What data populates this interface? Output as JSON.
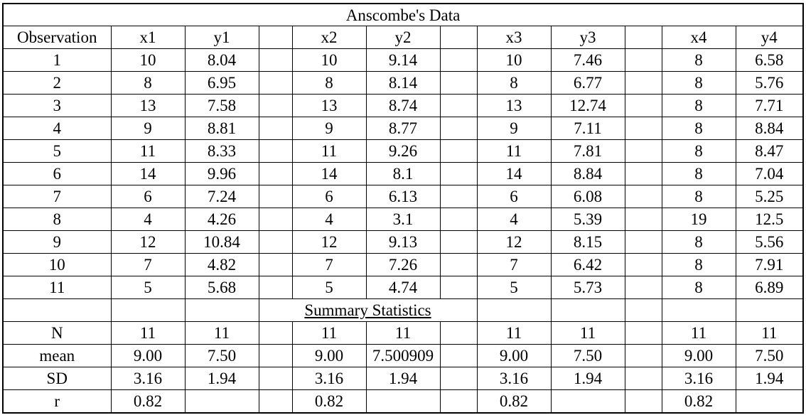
{
  "title": "Anscombe's Data",
  "headers": [
    "Observation",
    "x1",
    "y1",
    "",
    "x2",
    "y2",
    "",
    "x3",
    "y3",
    "",
    "x4",
    "y4"
  ],
  "observations": [
    [
      "1",
      "10",
      "8.04",
      "",
      "10",
      "9.14",
      "",
      "10",
      "7.46",
      "",
      "8",
      "6.58"
    ],
    [
      "2",
      "8",
      "6.95",
      "",
      "8",
      "8.14",
      "",
      "8",
      "6.77",
      "",
      "8",
      "5.76"
    ],
    [
      "3",
      "13",
      "7.58",
      "",
      "13",
      "8.74",
      "",
      "13",
      "12.74",
      "",
      "8",
      "7.71"
    ],
    [
      "4",
      "9",
      "8.81",
      "",
      "9",
      "8.77",
      "",
      "9",
      "7.11",
      "",
      "8",
      "8.84"
    ],
    [
      "5",
      "11",
      "8.33",
      "",
      "11",
      "9.26",
      "",
      "11",
      "7.81",
      "",
      "8",
      "8.47"
    ],
    [
      "6",
      "14",
      "9.96",
      "",
      "14",
      "8.1",
      "",
      "14",
      "8.84",
      "",
      "8",
      "7.04"
    ],
    [
      "7",
      "6",
      "7.24",
      "",
      "6",
      "6.13",
      "",
      "6",
      "6.08",
      "",
      "8",
      "5.25"
    ],
    [
      "8",
      "4",
      "4.26",
      "",
      "4",
      "3.1",
      "",
      "4",
      "5.39",
      "",
      "19",
      "12.5"
    ],
    [
      "9",
      "12",
      "10.84",
      "",
      "12",
      "9.13",
      "",
      "12",
      "8.15",
      "",
      "8",
      "5.56"
    ],
    [
      "10",
      "7",
      "4.82",
      "",
      "7",
      "7.26",
      "",
      "7",
      "6.42",
      "",
      "8",
      "7.91"
    ],
    [
      "11",
      "5",
      "5.68",
      "",
      "5",
      "4.74",
      "",
      "5",
      "5.73",
      "",
      "8",
      "6.89"
    ]
  ],
  "summary_title": "Summary Statistics",
  "summary_rows": [
    [
      "N",
      "11",
      "11",
      "",
      "11",
      "11",
      "",
      "11",
      "11",
      "",
      "11",
      "11"
    ],
    [
      "mean",
      "9.00",
      "7.50",
      "",
      "9.00",
      "7.500909",
      "",
      "9.00",
      "7.50",
      "",
      "9.00",
      "7.50"
    ],
    [
      "SD",
      "3.16",
      "1.94",
      "",
      "3.16",
      "1.94",
      "",
      "3.16",
      "1.94",
      "",
      "3.16",
      "1.94"
    ],
    [
      "r",
      "0.82",
      "",
      "",
      "0.82",
      "",
      "",
      "0.82",
      "",
      "",
      "0.82",
      ""
    ]
  ]
}
